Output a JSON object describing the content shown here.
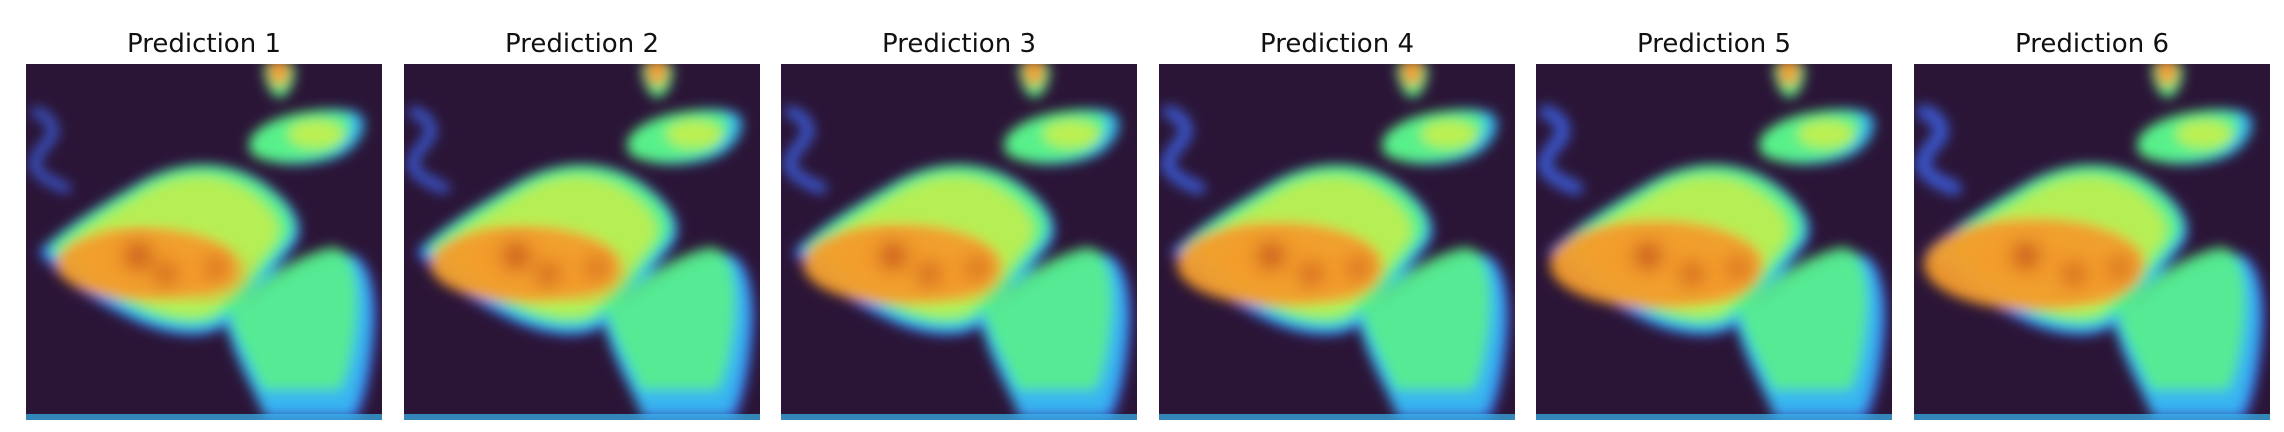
{
  "panels": [
    {
      "title": "Prediction 1",
      "variant": 0
    },
    {
      "title": "Prediction 2",
      "variant": 1
    },
    {
      "title": "Prediction 3",
      "variant": 2
    },
    {
      "title": "Prediction 4",
      "variant": 3
    },
    {
      "title": "Prediction 5",
      "variant": 4
    },
    {
      "title": "Prediction 6",
      "variant": 5
    }
  ],
  "colors": {
    "background": "#2b1537",
    "low": "#3c63e8",
    "mid_low": "#39b5f0",
    "mid": "#58f08a",
    "mid_high": "#c7ef4a",
    "high": "#f39b2b",
    "peak": "#b72712"
  }
}
